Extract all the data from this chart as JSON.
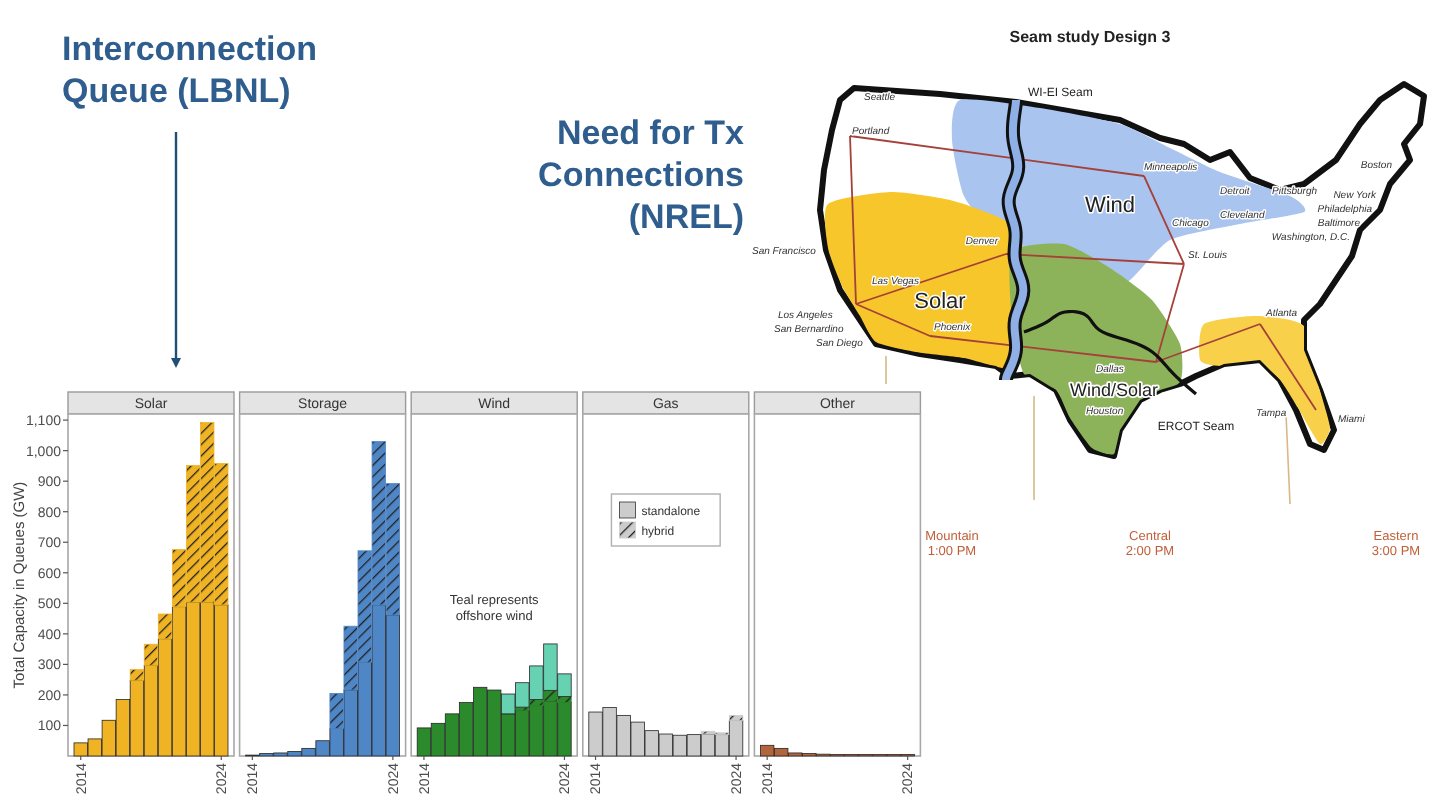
{
  "chart_data": [
    {
      "type": "bar",
      "title": "Solar",
      "ylabel": "Total Capacity in Queues (GW)",
      "annotations": [
        "Interconnection Queue (LBNL)"
      ],
      "categories": [
        "2014",
        null,
        null,
        null,
        null,
        null,
        null,
        null,
        null,
        null,
        "2024"
      ],
      "stacked": true,
      "ylim": [
        0,
        1120
      ],
      "yticks": [
        100,
        200,
        300,
        400,
        500,
        600,
        700,
        800,
        900,
        {
          "value": 1000,
          "label": "1,000"
        },
        {
          "value": 1100,
          "label": "1,100"
        }
      ],
      "series": [
        {
          "color": "#f0b323",
          "values": [
            43,
            56,
            117,
            185,
            248,
            297,
            384,
            489,
            504,
            504,
            495
          ]
        },
        {
          "color": "#f0b323",
          "values": [
            null,
            null,
            null,
            null,
            35,
            69,
            81,
            187,
            447,
            588,
            463
          ]
        }
      ]
    },
    {
      "type": "bar",
      "title": "Storage",
      "categories": [
        "2014",
        null,
        null,
        null,
        null,
        null,
        null,
        null,
        null,
        null,
        "2024"
      ],
      "stacked": true,
      "ylim": [
        0,
        1120
      ],
      "tick_labels": "x",
      "series": [
        {
          "color": "#4f86c6",
          "values": [
            3,
            8,
            10,
            15,
            25,
            50,
            90,
            216,
            307,
            495,
            462
          ]
        },
        {
          "color": "#4f86c6",
          "values": [
            null,
            null,
            null,
            null,
            null,
            null,
            115,
            209,
            365,
            535,
            430
          ]
        }
      ]
    },
    {
      "type": "bar",
      "title": "Wind",
      "annotations": [
        "Teal represents offshore wind"
      ],
      "categories": [
        "2014",
        null,
        null,
        null,
        null,
        null,
        null,
        null,
        null,
        null,
        "2024"
      ],
      "stacked": true,
      "ylim": [
        0,
        1120
      ],
      "tick_labels": "x",
      "series": [
        {
          "color": "#2b8a2b",
          "values": [
            92,
            107,
            138,
            175,
            225,
            216,
            138,
            150,
            165,
            180,
            175
          ]
        },
        {
          "color": "#2b8a2b",
          "values": [
            null,
            null,
            null,
            null,
            null,
            null,
            null,
            10,
            20,
            35,
            20
          ]
        },
        {
          "color": "#66d2b2",
          "values": [
            null,
            null,
            null,
            null,
            null,
            null,
            65,
            80,
            110,
            152,
            74
          ]
        }
      ]
    },
    {
      "type": "bar",
      "title": "Gas",
      "legend": "top",
      "categories": [
        "2014",
        null,
        null,
        null,
        null,
        null,
        null,
        null,
        null,
        null,
        "2024"
      ],
      "stacked": true,
      "ylim": [
        0,
        1120
      ],
      "tick_labels": "x",
      "series": [
        {
          "name": "standalone",
          "color": "#cccccc",
          "values": [
            144,
            159,
            133,
            111,
            83,
            72,
            68,
            70,
            72,
            70,
            116
          ]
        },
        {
          "name": "hybrid",
          "color": "#cccccc",
          "values": [
            null,
            null,
            null,
            null,
            null,
            null,
            null,
            null,
            9,
            6,
            17
          ]
        }
      ]
    },
    {
      "type": "bar",
      "title": "Other",
      "categories": [
        "2014",
        null,
        null,
        null,
        null,
        null,
        null,
        null,
        null,
        null,
        "2024"
      ],
      "stacked": true,
      "ylim": [
        0,
        1120
      ],
      "tick_labels": "x",
      "series": [
        {
          "color": "#b2643c",
          "values": [
            35,
            25,
            10,
            8,
            6,
            5,
            5,
            5,
            5,
            5,
            5
          ]
        }
      ]
    },
    {
      "type": "other",
      "title": "Seam study Design 3",
      "annotations": [
        "Need for Tx Connections (NREL)",
        "WI-EI Seam",
        "Wind",
        "Solar",
        "Wind/Solar",
        "ERCOT Seam",
        "Seattle",
        "Portland",
        "San Francisco",
        "Las Vegas",
        "Los Angeles",
        "San Bernardino",
        "San Diego",
        "Phoenix",
        "Denver",
        "Minneapolis",
        "Chicago",
        "Detroit",
        "Cleveland",
        "Pittsburgh",
        "St. Louis",
        "Atlanta",
        "Dallas",
        "Houston",
        "Tampa",
        "Miami",
        "Boston",
        "New York",
        "Philadelphia",
        "Baltimore",
        "Washington, D.C.",
        "Mountain 1:00 PM",
        "Central 2:00 PM",
        "Eastern 3:00 PM"
      ]
    }
  ]
}
